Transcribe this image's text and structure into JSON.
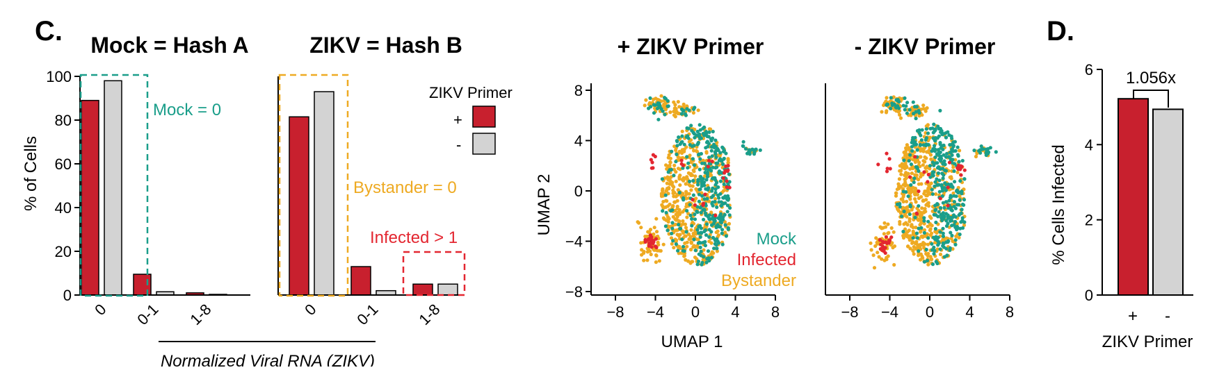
{
  "panel_c_letter": "C.",
  "panel_d_letter": "D.",
  "colors": {
    "plus": "#c8202e",
    "minus": "#d3d3d3",
    "mock": "#1a9e8a",
    "infected": "#e32630",
    "bystander": "#eeaa22"
  },
  "legend": {
    "title": "ZIKV Primer",
    "plus_label": "+",
    "minus_label": "-"
  },
  "shared_xlabel": "Normalized Viral RNA (ZIKV)",
  "umap_xlabel": "UMAP 1",
  "chart_data": [
    {
      "type": "bar",
      "title": "Mock = Hash A",
      "ylabel": "% of Cells",
      "ylim": [
        0,
        100
      ],
      "yticks": [
        "0",
        "20",
        "40",
        "60",
        "80",
        "100"
      ],
      "categories": [
        "0",
        "0-1",
        "1-8"
      ],
      "series": [
        {
          "name": "+",
          "values": [
            89,
            9.5,
            1
          ]
        },
        {
          "name": "-",
          "values": [
            98,
            1.5,
            0.3
          ]
        }
      ],
      "annotation": "Mock = 0"
    },
    {
      "type": "bar",
      "title": "ZIKV = Hash B",
      "ylim": [
        0,
        100
      ],
      "categories": [
        "0",
        "0-1",
        "1-8"
      ],
      "series": [
        {
          "name": "+",
          "values": [
            81.5,
            13,
            5
          ]
        },
        {
          "name": "-",
          "values": [
            93,
            2,
            5
          ]
        }
      ],
      "annotations": [
        "Bystander = 0",
        "Infected > 1"
      ]
    },
    {
      "type": "scatter",
      "title": "+ ZIKV Primer",
      "ylabel": "UMAP 2",
      "xlim": [
        -8,
        8
      ],
      "ylim": [
        -8,
        8
      ],
      "xticks": [
        "−8",
        "−4",
        "0",
        "4",
        "8"
      ],
      "yticks": [
        "8",
        "4",
        "0",
        "−4",
        "−8"
      ],
      "legend_entries": [
        "Mock",
        "Infected",
        "Bystander"
      ]
    },
    {
      "type": "scatter",
      "title": "- ZIKV Primer",
      "xlim": [
        -8,
        8
      ],
      "ylim": [
        -8,
        8
      ],
      "xticks": [
        "−8",
        "−4",
        "0",
        "4",
        "8"
      ]
    },
    {
      "type": "bar",
      "ylabel": "% Cells Infected",
      "xlabel": "ZIKV Primer",
      "ylim": [
        0,
        6
      ],
      "yticks": [
        "0",
        "2",
        "4",
        "6"
      ],
      "categories": [
        "+",
        "-"
      ],
      "values": [
        5.22,
        4.94
      ],
      "annotation": "1.056x"
    }
  ]
}
